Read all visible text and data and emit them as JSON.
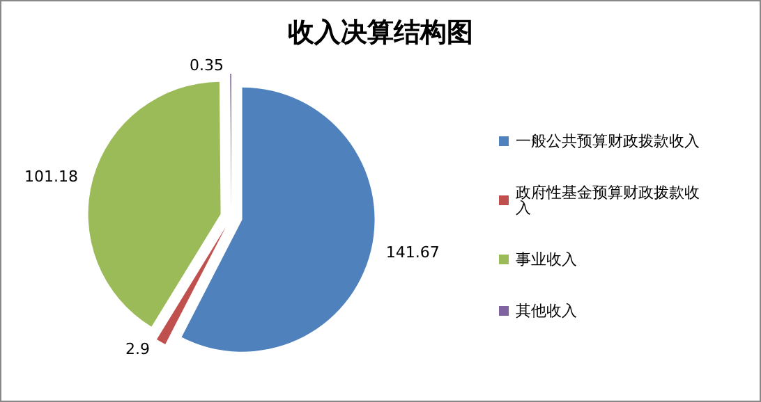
{
  "chart_data": {
    "type": "pie",
    "title": "收入决算结构图",
    "categories": [
      "一般公共预算财政拨款收入",
      "政府性基金预算财政拨款收入",
      "事业收入",
      "其他收入"
    ],
    "values": [
      141.67,
      2.9,
      101.18,
      0.35
    ],
    "colors": [
      "#4f81bd",
      "#c0504d",
      "#9bbb59",
      "#8064a2"
    ],
    "data_labels": true,
    "legend": "right"
  }
}
